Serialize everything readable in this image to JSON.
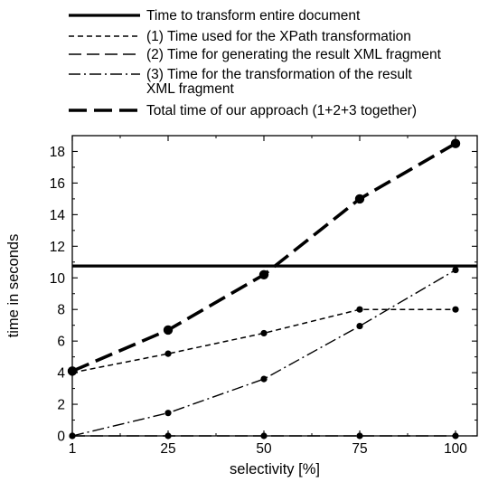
{
  "chart_data": {
    "type": "line",
    "title": "",
    "xlabel": "selectivity [%]",
    "ylabel": "time in seconds",
    "x": [
      1,
      25,
      50,
      75,
      100
    ],
    "x_tick_labels": [
      "1",
      "25",
      "50",
      "75",
      "100"
    ],
    "y_ticks": [
      0,
      2,
      4,
      6,
      8,
      10,
      12,
      14,
      16,
      18
    ],
    "y_tick_labels": [
      "0",
      "2",
      "4",
      "6",
      "8",
      "10",
      "12",
      "14",
      "16",
      "18"
    ],
    "ylim": [
      0,
      19
    ],
    "x_scale": "categorical, evenly spaced",
    "grid": false,
    "legend_position": "top",
    "series": [
      {
        "name": "Time to transform entire document",
        "style": "solid-thick",
        "markers": false,
        "values": [
          10.75,
          10.75,
          10.75,
          10.75,
          10.75
        ]
      },
      {
        "name": "(1) Time used for the XPath transformation",
        "style": "short-dash",
        "markers": true,
        "values": [
          4.0,
          5.2,
          6.5,
          8.0,
          8.0
        ]
      },
      {
        "name": "(2) Time for generating the result XML fragment",
        "style": "long-dash-thin",
        "markers": true,
        "values": [
          0.0,
          0.0,
          0.0,
          0.0,
          0.0
        ]
      },
      {
        "name": "(3) Time for the transformation of the result XML fragment",
        "style": "dash-dot",
        "markers": true,
        "values": [
          0.0,
          1.45,
          3.6,
          6.95,
          10.5
        ]
      },
      {
        "name": "Total time of our approach (1+2+3 together)",
        "style": "long-dash-thick",
        "markers": true,
        "values": [
          4.1,
          6.7,
          10.2,
          15.0,
          18.5
        ]
      }
    ]
  }
}
